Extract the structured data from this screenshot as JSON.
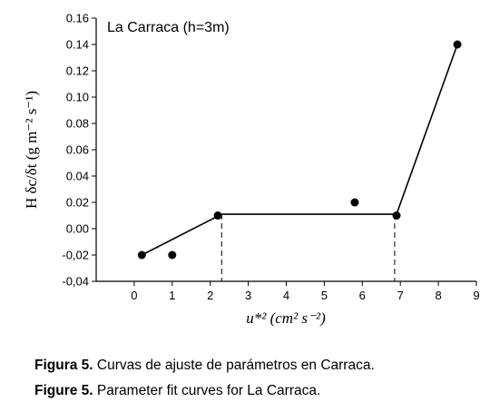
{
  "chart_data": {
    "type": "scatter",
    "annotation": "La Carraca (h=3m)",
    "xlabel": "u*² (cm² s⁻²)",
    "ylabel": "H δc/δt (g m⁻² s⁻¹)",
    "x": [
      0.2,
      1.0,
      2.2,
      5.8,
      6.9,
      8.5
    ],
    "values": [
      -0.02,
      -0.02,
      0.01,
      0.02,
      0.01,
      0.14
    ],
    "color": "#000000",
    "fit": {
      "x": [
        0.2,
        2.3,
        6.9,
        8.5
      ],
      "y": [
        -0.02,
        0.011,
        0.011,
        0.14
      ]
    },
    "breaks": [
      2.3,
      6.85
    ],
    "xlim": [
      -1,
      9
    ],
    "xticks": [
      0,
      1,
      2,
      3,
      4,
      5,
      6,
      7,
      8,
      9
    ],
    "ylim": [
      -0.04,
      0.16
    ],
    "yticks": [
      {
        "value": -0.04,
        "label": "-0,04"
      },
      {
        "value": -0.02,
        "label": "-0,02"
      },
      {
        "value": 0,
        "label": "0.00"
      },
      {
        "value": 0.02,
        "label": "0.02"
      },
      {
        "value": 0.04,
        "label": "0.04"
      },
      {
        "value": 0.06,
        "label": "0.06"
      },
      {
        "value": 0.08,
        "label": "0.08"
      },
      {
        "value": 0.1,
        "label": "0.10"
      },
      {
        "value": 0.12,
        "label": "0.12"
      },
      {
        "value": 0.14,
        "label": "0.14"
      },
      {
        "value": 0.16,
        "label": "0.16"
      }
    ]
  },
  "captions": [
    {
      "label": "Figura 5.",
      "text": "Curvas de ajuste de parámetros en Carraca."
    },
    {
      "label": "Figure 5.",
      "text": "Parameter fit curves for La Carraca."
    }
  ]
}
